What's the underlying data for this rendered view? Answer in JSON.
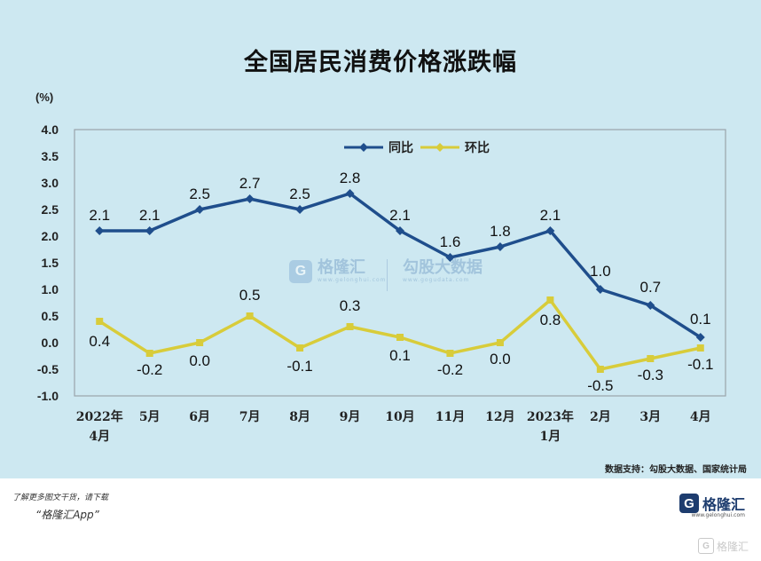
{
  "title": "全国居民消费价格涨跌幅",
  "unit_label": "(%)",
  "source": "数据支持：勾股大数据、国家统计局",
  "watermark_left": {
    "logo": "G",
    "text": "格隆汇",
    "sub": "www.gelonghui.com"
  },
  "watermark_right": {
    "text": "勾股大数据",
    "sub": "www.gogudata.com"
  },
  "footer": {
    "line1": "了解更多图文干货，请下载",
    "line2": "“格隆汇App”",
    "brand_logo": "G",
    "brand_text": "格隆汇",
    "brand_sub": "www.gelonghui.com",
    "corner_logo": "G",
    "corner_text": "格隆汇"
  },
  "chart_data": {
    "type": "line",
    "categories": [
      "2022年4月",
      "5月",
      "6月",
      "7月",
      "8月",
      "9月",
      "10月",
      "11月",
      "12月",
      "2023年1月",
      "2月",
      "3月",
      "4月"
    ],
    "category_lines": [
      [
        "2022年",
        "4月"
      ],
      [
        "5月"
      ],
      [
        "6月"
      ],
      [
        "7月"
      ],
      [
        "8月"
      ],
      [
        "9月"
      ],
      [
        "10月"
      ],
      [
        "11月"
      ],
      [
        "12月"
      ],
      [
        "2023年",
        "1月"
      ],
      [
        "2月"
      ],
      [
        "3月"
      ],
      [
        "4月"
      ]
    ],
    "series": [
      {
        "name": "同比",
        "color": "#1f4e8c",
        "values": [
          2.1,
          2.1,
          2.5,
          2.7,
          2.5,
          2.8,
          2.1,
          1.6,
          1.8,
          2.1,
          1.0,
          0.7,
          0.1
        ],
        "labels": [
          "2.1",
          "2.1",
          "2.5",
          "2.7",
          "2.5",
          "2.8",
          "2.1",
          "1.6",
          "1.8",
          "2.1",
          "1.0",
          "0.7",
          "0.1"
        ]
      },
      {
        "name": "环比",
        "color": "#d8cc3a",
        "values": [
          0.4,
          -0.2,
          0.0,
          0.5,
          -0.1,
          0.3,
          0.1,
          -0.2,
          0.0,
          0.8,
          -0.5,
          -0.3,
          -0.1
        ],
        "labels": [
          "0.4",
          "-0.2",
          "0.0",
          "0.5",
          "-0.1",
          "0.3",
          "0.1",
          "-0.2",
          "0.0",
          "0.8",
          "-0.5",
          "-0.3",
          "-0.1"
        ]
      }
    ],
    "ylim": [
      -1.0,
      4.0
    ],
    "yticks": [
      "4.0",
      "3.5",
      "3.0",
      "2.5",
      "2.0",
      "1.5",
      "1.0",
      "0.5",
      "0.0",
      "-0.5",
      "-1.0"
    ],
    "ytick_values": [
      4.0,
      3.5,
      3.0,
      2.5,
      2.0,
      1.5,
      1.0,
      0.5,
      0.0,
      -0.5,
      -1.0
    ],
    "legend_position": "top-center",
    "grid": false
  }
}
